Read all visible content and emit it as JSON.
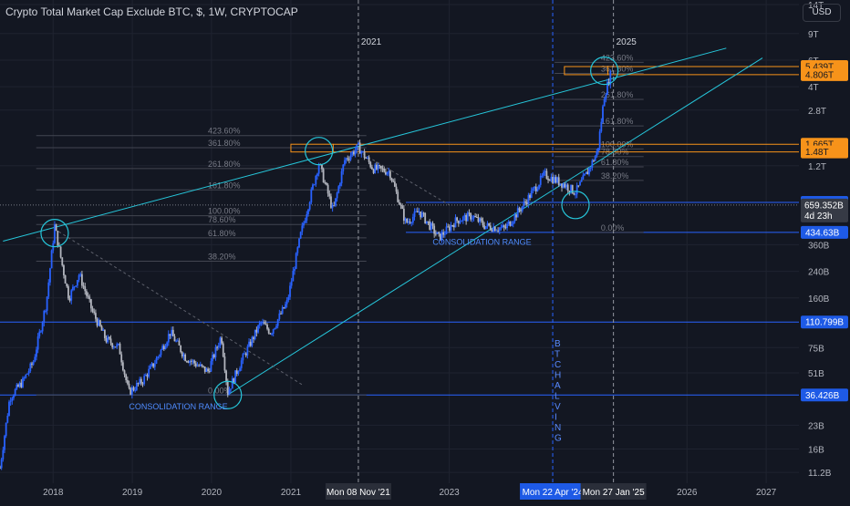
{
  "header": {
    "title": "Crypto Total Market Cap Exclude BTC, $, 1W, CRYPTOCAP",
    "currency": "USD"
  },
  "colors": {
    "background": "#131722",
    "grid": "#1f2330",
    "axis_text": "#b2b5be",
    "trendline": "#26c6da",
    "fib_line": "#434651",
    "fib_text": "#787b86",
    "highlight": "#f7931a",
    "hline": "#2962ff",
    "price_label": "#1e5ae6",
    "candle_blue": "#2962ff",
    "candle_light": "#b2b5be"
  },
  "chart_data": {
    "type": "candlestick",
    "title": "Crypto Total Market Cap Exclude BTC, $, 1W, CRYPTOCAP",
    "y_scale": "log",
    "y_ticks": [
      "14T",
      "9T",
      "6T",
      "4T",
      "2.8T",
      "1.2T",
      "360B",
      "240B",
      "160B",
      "75B",
      "51B",
      "23B",
      "16B",
      "11.2B"
    ],
    "x_ticks": [
      "2018",
      "2019",
      "2020",
      "2021",
      "2023",
      "2026",
      "2027"
    ],
    "x_range": [
      "2017-05-01",
      "2027-06-01"
    ],
    "y_range_usd": [
      9500000000,
      15000000000000
    ],
    "current_price_label": "659.352B",
    "countdown_label": "4d 23h",
    "current_price_usd": 659352000000,
    "price_labels": [
      {
        "text": "5.439T",
        "value": 5439000000000,
        "style": "highlight"
      },
      {
        "text": "4.806T",
        "value": 4806000000000,
        "style": "highlight"
      },
      {
        "text": "1.665T",
        "value": 1665000000000,
        "style": "highlight"
      },
      {
        "text": "1.48T",
        "value": 1480000000000,
        "style": "highlight"
      },
      {
        "text": "685.927B",
        "value": 685927000000,
        "style": "hline"
      },
      {
        "text": "434.63B",
        "value": 434630000000,
        "style": "hline"
      },
      {
        "text": "110.799B",
        "value": 110799000000,
        "style": "hline"
      },
      {
        "text": "36.426B",
        "value": 36426000000,
        "style": "hline"
      }
    ],
    "time_labels": [
      {
        "text": "Mon 08 Nov '21",
        "date": "2021-11-08",
        "style": "gray"
      },
      {
        "text": "Mon 22 Apr '24",
        "date": "2024-04-22",
        "style": "blue"
      },
      {
        "text": "Mon 27 Jan '25",
        "date": "2025-01-27",
        "style": "gray"
      }
    ],
    "vertical_lines": [
      {
        "label": "2021",
        "date": "2021-11-08"
      },
      {
        "label": "BTC HALVING",
        "date": "2024-04-22"
      },
      {
        "label": "2025",
        "date": "2025-01-27"
      }
    ],
    "horizontal_lines": [
      {
        "value": 110799000000,
        "from": "2017-05-01",
        "to": "2027-06-01"
      },
      {
        "value": 36426000000,
        "from": "2017-05-01",
        "to": "2027-06-01"
      },
      {
        "value": 685927000000,
        "from": "2022-06-15",
        "to": "2027-06-01"
      },
      {
        "value": 434630000000,
        "from": "2022-06-15",
        "to": "2027-06-01"
      }
    ],
    "fib_sets": [
      {
        "from": "2017-10-15",
        "to": "2021-12-15",
        "levels": [
          {
            "label": "423.60%",
            "value": 1900000000000
          },
          {
            "label": "361.80%",
            "value": 1580000000000
          },
          {
            "label": "261.80%",
            "value": 1150000000000
          },
          {
            "label": "161.80%",
            "value": 830000000000
          },
          {
            "label": "100.00%",
            "value": 560000000000
          },
          {
            "label": "78.60%",
            "value": 490000000000
          },
          {
            "label": "61.80%",
            "value": 400000000000
          },
          {
            "label": "38.20%",
            "value": 280000000000
          },
          {
            "label": "0.00%",
            "value": 36426000000
          }
        ]
      },
      {
        "from": "2024-05-01",
        "to": "2025-06-15",
        "levels": [
          {
            "label": "423.60%",
            "value": 5800000000000
          },
          {
            "label": "361.80%",
            "value": 4900000000000
          },
          {
            "label": "261.80%",
            "value": 3300000000000
          },
          {
            "label": "161.80%",
            "value": 2200000000000
          },
          {
            "label": "100.00%",
            "value": 1550000000000
          },
          {
            "label": "78.60%",
            "value": 1380000000000
          },
          {
            "label": "61.80%",
            "value": 1180000000000
          },
          {
            "label": "38.20%",
            "value": 960000000000
          },
          {
            "label": "0.00%",
            "value": 434630000000
          }
        ]
      }
    ],
    "trendlines": [
      {
        "from": {
          "date": "2017-05-15",
          "value": 380000000000
        },
        "to": {
          "date": "2026-07-01",
          "value": 7200000000000
        }
      },
      {
        "from": {
          "date": "2020-03-15",
          "value": 36426000000
        },
        "to": {
          "date": "2026-12-15",
          "value": 6200000000000
        }
      },
      {
        "from": {
          "date": "2018-01-05",
          "value": 460000000000
        },
        "to": {
          "date": "2021-03-01",
          "value": 42000000000
        },
        "dashed": true
      },
      {
        "from": {
          "date": "2021-11-08",
          "value": 1500000000000
        },
        "to": {
          "date": "2023-01-01",
          "value": 660000000000
        },
        "dashed": true
      }
    ],
    "highlight_boxes": [
      {
        "label": "361.80%",
        "from": "2021-01-01",
        "to": "2021-07-15",
        "low": 1480000000000,
        "high": 1665000000000
      },
      {
        "label": "361.80%",
        "from": "2024-06-15",
        "to": "2025-01-01",
        "low": 4806000000000,
        "high": 5439000000000
      }
    ],
    "circles": [
      {
        "date": "2018-01-08",
        "value": 430000000000
      },
      {
        "date": "2020-03-16",
        "value": 36426000000
      },
      {
        "date": "2021-05-10",
        "value": 1500000000000
      },
      {
        "date": "2024-08-05",
        "value": 660000000000
      },
      {
        "date": "2024-12-16",
        "value": 5100000000000
      }
    ],
    "annotations": [
      {
        "text": "CONSOLIDATION RANGE",
        "date": "2019-08-01",
        "value": 31000000000
      },
      {
        "text": "CONSOLIDATION RANGE",
        "date": "2023-06-01",
        "value": 380000000000
      }
    ],
    "price_path": [
      [
        "2017-05-01",
        12000000000
      ],
      [
        "2017-06-15",
        35000000000
      ],
      [
        "2017-08-15",
        45000000000
      ],
      [
        "2017-10-01",
        60000000000
      ],
      [
        "2017-12-01",
        150000000000
      ],
      [
        "2018-01-08",
        480000000000
      ],
      [
        "2018-02-15",
        250000000000
      ],
      [
        "2018-03-15",
        160000000000
      ],
      [
        "2018-05-01",
        230000000000
      ],
      [
        "2018-07-01",
        130000000000
      ],
      [
        "2018-09-01",
        85000000000
      ],
      [
        "2018-11-01",
        75000000000
      ],
      [
        "2018-12-15",
        38000000000
      ],
      [
        "2019-02-15",
        45000000000
      ],
      [
        "2019-04-15",
        60000000000
      ],
      [
        "2019-06-25",
        95000000000
      ],
      [
        "2019-09-01",
        65000000000
      ],
      [
        "2019-12-15",
        52000000000
      ],
      [
        "2020-02-15",
        90000000000
      ],
      [
        "2020-03-16",
        38000000000
      ],
      [
        "2020-05-15",
        60000000000
      ],
      [
        "2020-08-15",
        110000000000
      ],
      [
        "2020-10-01",
        95000000000
      ],
      [
        "2020-12-15",
        150000000000
      ],
      [
        "2021-02-15",
        420000000000
      ],
      [
        "2021-05-10",
        1250000000000
      ],
      [
        "2021-07-15",
        600000000000
      ],
      [
        "2021-09-05",
        1300000000000
      ],
      [
        "2021-11-08",
        1600000000000
      ],
      [
        "2022-01-15",
        1150000000000
      ],
      [
        "2022-04-01",
        1100000000000
      ],
      [
        "2022-06-15",
        500000000000
      ],
      [
        "2022-08-15",
        600000000000
      ],
      [
        "2022-11-15",
        400000000000
      ],
      [
        "2023-02-01",
        520000000000
      ],
      [
        "2023-04-15",
        560000000000
      ],
      [
        "2023-06-15",
        480000000000
      ],
      [
        "2023-09-15",
        460000000000
      ],
      [
        "2023-12-15",
        680000000000
      ],
      [
        "2024-03-15",
        1050000000000
      ],
      [
        "2024-06-15",
        900000000000
      ],
      [
        "2024-08-05",
        800000000000
      ],
      [
        "2024-10-01",
        1100000000000
      ],
      [
        "2024-11-15",
        1500000000000
      ],
      [
        "2024-12-16",
        3500000000000
      ],
      [
        "2025-01-15",
        4900000000000
      ]
    ]
  }
}
